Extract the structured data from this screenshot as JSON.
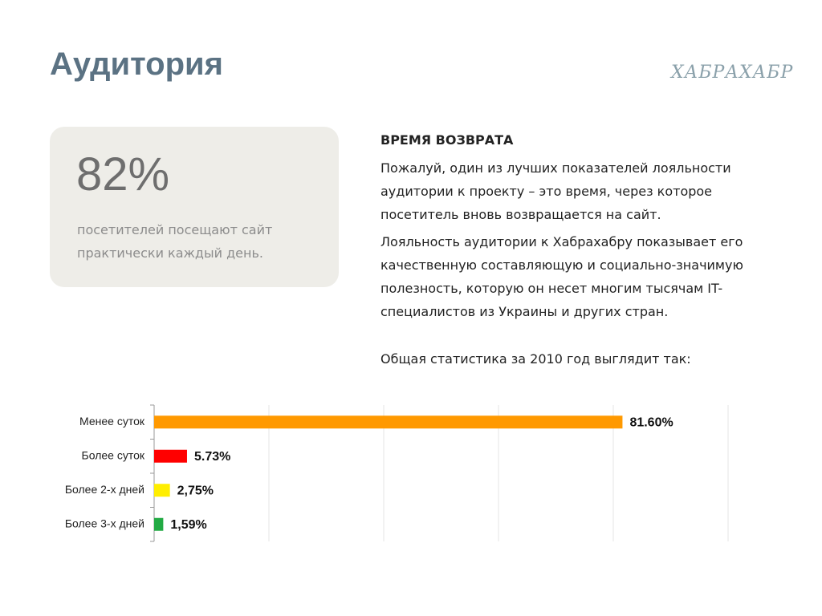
{
  "header": {
    "title": "Аудитория",
    "logo": "ХАБРАХАБР"
  },
  "card": {
    "value": "82%",
    "caption": "посетителей посещают сайт практически каждый день."
  },
  "text": {
    "heading": "ВРЕМЯ ВОЗВРАТА",
    "paragraphs": [
      "Пожалуй, один из лучших показателей лояльности аудитории к проекту – это время, через которое посетитель вновь возвращается на сайт.",
      "Лояльность аудитории к Хабрахабру показывает его качественную составляющую и социально-значимую полезность, которую он несет многим тысячам IT-специалистов из Украины и других стран.",
      "Общая статистика за 2010 год выглядит так:"
    ]
  },
  "chart_data": {
    "type": "hbar",
    "categories": [
      "Менее суток",
      "Более суток",
      "Более 2-х дней",
      "Более 3-х дней"
    ],
    "values": [
      81.6,
      5.73,
      2.75,
      1.59
    ],
    "value_labels": [
      "81.60%",
      "5.73%",
      "2,75%",
      "1,59%"
    ],
    "colors": [
      "#ff9900",
      "#ff0000",
      "#ffee00",
      "#22aa44"
    ],
    "xlim": [
      0,
      100
    ],
    "xticks": [
      0,
      20,
      40,
      60,
      80,
      100
    ],
    "grid": true
  }
}
